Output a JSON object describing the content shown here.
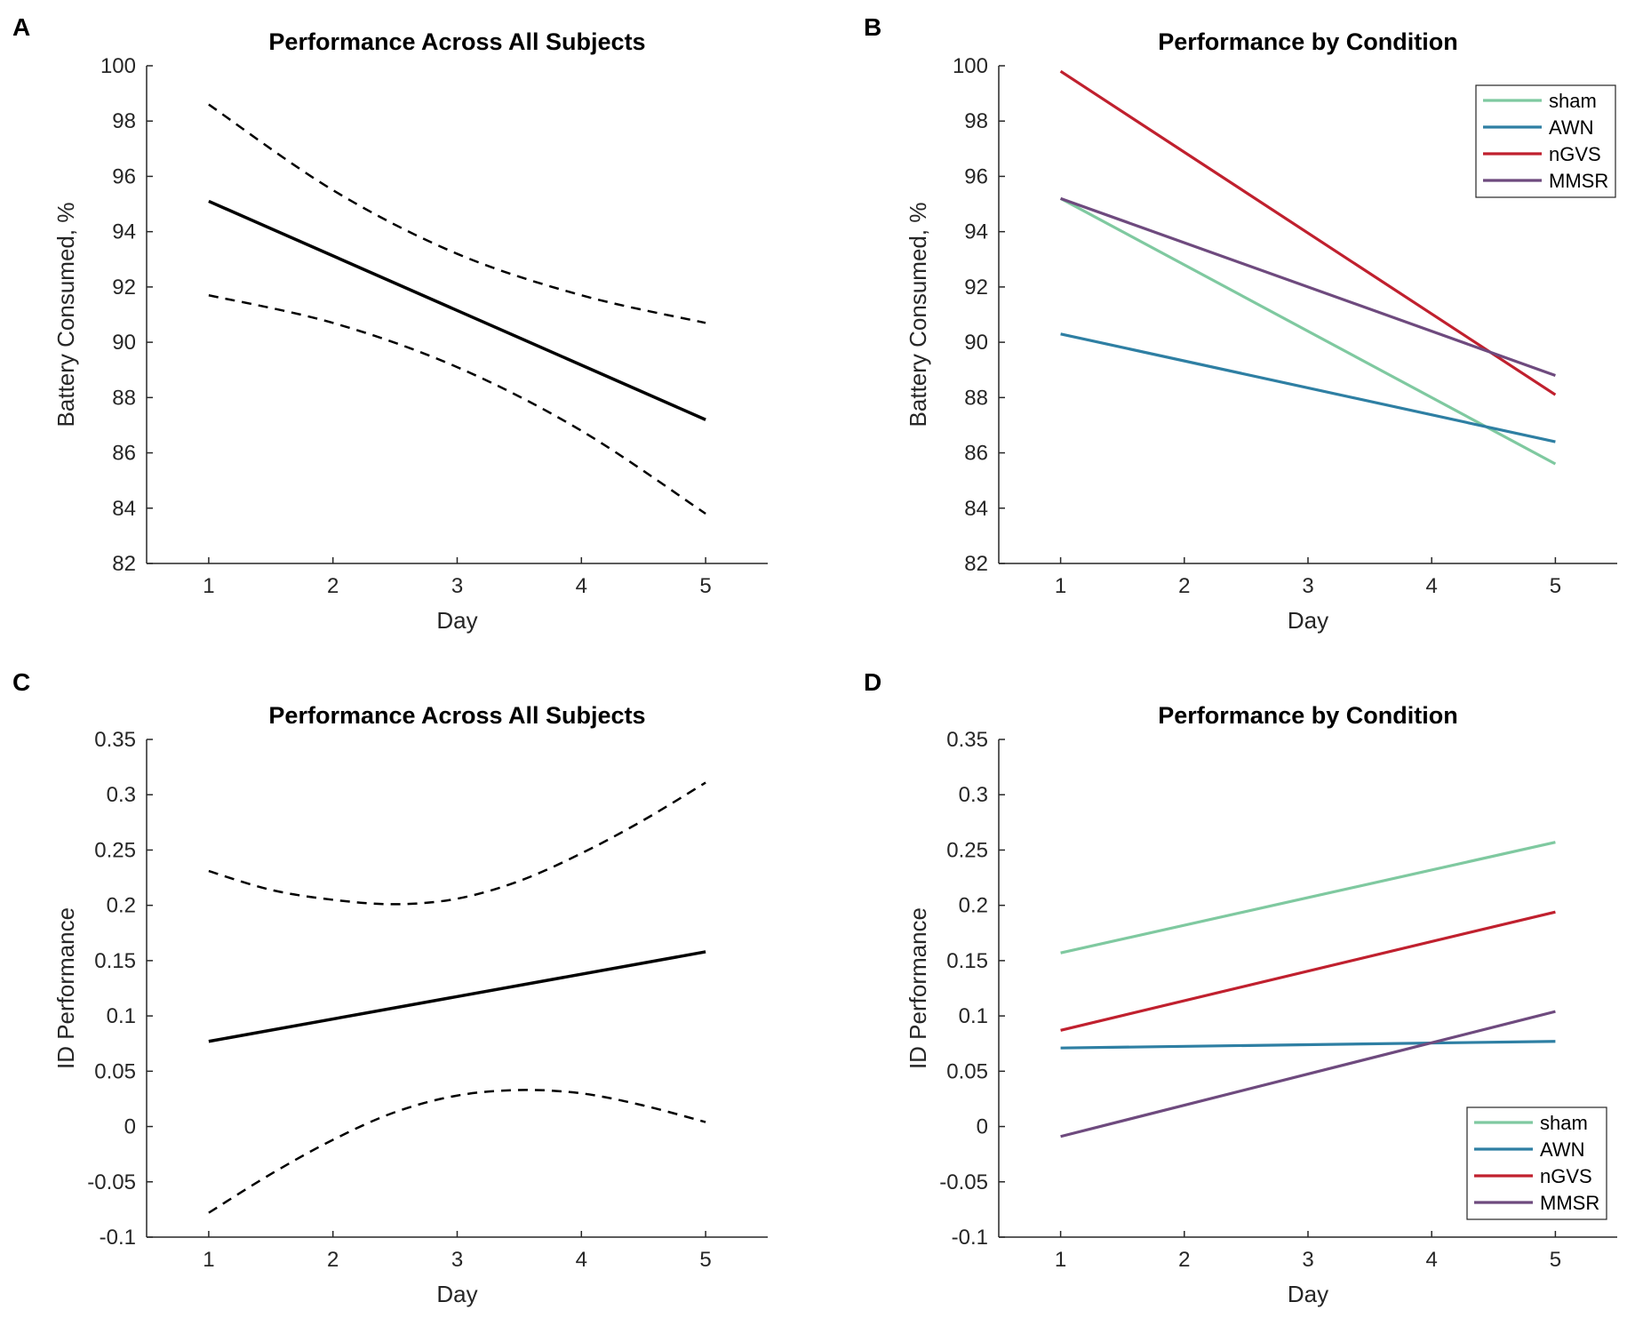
{
  "chart_data": [
    {
      "id": "A",
      "type": "line",
      "panel_label": "A",
      "title": "Performance Across All Subjects",
      "xlabel": "Day",
      "ylabel": "Battery Consumed, %",
      "xlim": [
        0.5,
        5.5
      ],
      "ylim": [
        82,
        100
      ],
      "xticks": [
        1,
        2,
        3,
        4,
        5
      ],
      "yticks": [
        82,
        84,
        86,
        88,
        90,
        92,
        94,
        96,
        98,
        100
      ],
      "series": [
        {
          "name": "fit",
          "style": "solid",
          "color": "#000000",
          "x": [
            1,
            5
          ],
          "y": [
            95.1,
            87.2
          ]
        },
        {
          "name": "upper CI",
          "style": "dashed",
          "color": "#000000",
          "x": [
            1,
            2,
            3,
            4,
            5
          ],
          "y": [
            98.6,
            95.5,
            93.2,
            91.7,
            90.7
          ]
        },
        {
          "name": "lower CI",
          "style": "dashed",
          "color": "#000000",
          "x": [
            1,
            2,
            3,
            4,
            5
          ],
          "y": [
            91.7,
            90.7,
            89.1,
            86.8,
            83.8
          ]
        }
      ]
    },
    {
      "id": "B",
      "type": "line",
      "panel_label": "B",
      "title": "Performance by Condition",
      "xlabel": "Day",
      "ylabel": "Battery Consumed, %",
      "xlim": [
        0.5,
        5.5
      ],
      "ylim": [
        82,
        100
      ],
      "xticks": [
        1,
        2,
        3,
        4,
        5
      ],
      "yticks": [
        82,
        84,
        86,
        88,
        90,
        92,
        94,
        96,
        98,
        100
      ],
      "legend_position": "top-right",
      "series": [
        {
          "name": "sham",
          "color": "#7fc9a0",
          "x": [
            1,
            5
          ],
          "y": [
            95.2,
            85.6
          ]
        },
        {
          "name": "AWN",
          "color": "#2e7fa3",
          "x": [
            1,
            5
          ],
          "y": [
            90.3,
            86.4
          ]
        },
        {
          "name": "nGVS",
          "color": "#c0202e",
          "x": [
            1,
            5
          ],
          "y": [
            99.8,
            88.1
          ]
        },
        {
          "name": "MMSR",
          "color": "#6e4a7e",
          "x": [
            1,
            5
          ],
          "y": [
            95.2,
            88.8
          ]
        }
      ]
    },
    {
      "id": "C",
      "type": "line",
      "panel_label": "C",
      "title": "Performance Across All Subjects",
      "xlabel": "Day",
      "ylabel": "ID Performance",
      "xlim": [
        0.5,
        5.5
      ],
      "ylim": [
        -0.1,
        0.35
      ],
      "xticks": [
        1,
        2,
        3,
        4,
        5
      ],
      "yticks": [
        -0.1,
        -0.05,
        0,
        0.05,
        0.1,
        0.15,
        0.2,
        0.25,
        0.3,
        0.35
      ],
      "series": [
        {
          "name": "fit",
          "style": "solid",
          "color": "#000000",
          "x": [
            1,
            5
          ],
          "y": [
            0.077,
            0.158
          ]
        },
        {
          "name": "upper CI",
          "style": "dashed",
          "color": "#000000",
          "x": [
            1,
            1.5,
            2,
            2.5,
            3,
            3.5,
            4,
            4.5,
            5
          ],
          "y": [
            0.231,
            0.214,
            0.205,
            0.201,
            0.206,
            0.222,
            0.247,
            0.277,
            0.311
          ]
        },
        {
          "name": "lower CI",
          "style": "dashed",
          "color": "#000000",
          "x": [
            1,
            1.5,
            2,
            2.5,
            3,
            3.5,
            4,
            4.5,
            5
          ],
          "y": [
            -0.078,
            -0.043,
            -0.012,
            0.013,
            0.028,
            0.033,
            0.03,
            0.019,
            0.004
          ]
        }
      ]
    },
    {
      "id": "D",
      "type": "line",
      "panel_label": "D",
      "title": "Performance by Condition",
      "xlabel": "Day",
      "ylabel": "ID Performance",
      "xlim": [
        0.5,
        5.5
      ],
      "ylim": [
        -0.1,
        0.35
      ],
      "xticks": [
        1,
        2,
        3,
        4,
        5
      ],
      "yticks": [
        -0.1,
        -0.05,
        0,
        0.05,
        0.1,
        0.15,
        0.2,
        0.25,
        0.3,
        0.35
      ],
      "legend_position": "bottom-right",
      "series": [
        {
          "name": "sham",
          "color": "#7fc9a0",
          "x": [
            1,
            5
          ],
          "y": [
            0.157,
            0.257
          ]
        },
        {
          "name": "AWN",
          "color": "#2e7fa3",
          "x": [
            1,
            5
          ],
          "y": [
            0.071,
            0.077
          ]
        },
        {
          "name": "nGVS",
          "color": "#c0202e",
          "x": [
            1,
            5
          ],
          "y": [
            0.087,
            0.194
          ]
        },
        {
          "name": "MMSR",
          "color": "#6e4a7e",
          "x": [
            1,
            5
          ],
          "y": [
            -0.009,
            0.104
          ]
        }
      ]
    }
  ]
}
